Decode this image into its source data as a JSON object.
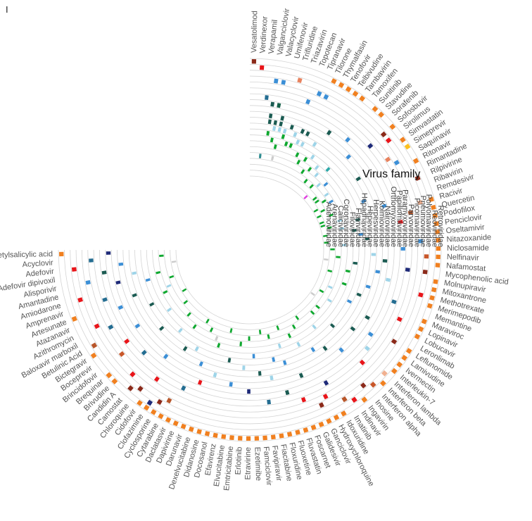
{
  "chart_data": {
    "type": "circular-heatmap",
    "panel_label": "I",
    "legend_title": "Virus family",
    "families": [
      "Retroviridae",
      "Reoviridae",
      "Polyomaviridae",
      "Pneumoviridae",
      "Picornaviridae",
      "Parvoviridae",
      "Paramyxoviridae",
      "Papillomaviridae",
      "Orthomyxoviridae",
      "Nairoviridae",
      "Kolmioviridae",
      "Herpesviridae",
      "Hepeviridae",
      "Hepadnaviridae",
      "Flaviviridae",
      "Filoviridae",
      "Coronaviridae",
      "Caliciviridae",
      "Arenaviridae",
      "Adenoviridae"
    ],
    "drugs": [
      "Vesatolimod",
      "Verdinexor",
      "Verapamil",
      "Valganciclovir",
      "Valacyclovir",
      "Umifenovir",
      "Trifluridine",
      "Triazavirin",
      "Topotecan",
      "Tipranavir",
      "Tilorone",
      "Thymalfasin",
      "Tenofovir",
      "Telbivudine",
      "Tarnbavirin",
      "Tamoxifen",
      "Sunitinib",
      "Stavudine",
      "Sorafenib",
      "Sofosbuvir",
      "Sirolimus",
      "Simvastatin",
      "Simeprevir",
      "Saquinavir",
      "Ritonavir",
      "Rimantadine",
      "Rilpivirine",
      "Ribavirin",
      "Remdesivir",
      "Racivir",
      "Quercetin",
      "Podofilox",
      "Penciclovir",
      "Oseltamivir",
      "Nitazoxanide",
      "Niclosamide",
      "Nelfinavir",
      "Nafamostat",
      "Mycophenolic acid",
      "Molnupiravir",
      "Mitoxantrone",
      "Methotrexate",
      "Merimepodib",
      "Memantine",
      "Maraviroc",
      "Lopinavir",
      "Lobucavir",
      "Leronlimab",
      "Leflunomide",
      "Lamivudine",
      "Ivermectin",
      "Interleukin-7",
      "Interferon lambda",
      "Interferon beta",
      "Interferon alpha",
      "Inosine",
      "Ingavirin",
      "Indinavir",
      "Imatinib",
      "Idoxuridine",
      "Hydroxychloroquine",
      "Ganciclovir",
      "Galidesivir",
      "Foscarnet",
      "Fluvastatin",
      "Fluoxetine",
      "Floxuridine",
      "Fiacitabine",
      "Favipiravir",
      "Famciclovir",
      "Ezetimibe",
      "Etravirine",
      "Erlotinib",
      "Emtricitabine",
      "Elvucitabine",
      "Efavirenz",
      "Docosanol",
      "Didanosine",
      "Dexelvucitabine",
      "Darunavir",
      "Dapivirine",
      "Daclatasvir",
      "Cytarabine",
      "Cyclosporine",
      "Clofazimine",
      "Cidofovir",
      "Chloroquine",
      "Camostat",
      "Candidin A",
      "Brivudine",
      "Brequinar",
      "Brincidofovir",
      "Boceprevir",
      "Bictegravir",
      "Betulinic Acid",
      "Baloxavir marboxil",
      "Azithromycin",
      "Atazanavir",
      "Artesunate",
      "Amprenavir",
      "Amiodarone",
      "Amantadine",
      "Alisporivir",
      "Adefovir dipivoxil",
      "Adefovir",
      "Acyclovir",
      "Acetylsalicylic acid"
    ],
    "cells": [
      [
        0,
        0,
        "#8b2a1a"
      ],
      [
        1,
        1,
        "#e8151a"
      ],
      [
        2,
        6,
        "#246d91"
      ],
      [
        2,
        16,
        "#2d8b8f"
      ],
      [
        3,
        3,
        "#3c8fd6"
      ],
      [
        3,
        7,
        "#1b5b52"
      ],
      [
        3,
        9,
        "#1b5b52"
      ],
      [
        3,
        10,
        "#1b5b52"
      ],
      [
        3,
        12,
        "#10a830"
      ],
      [
        4,
        3,
        "#3c8fd6"
      ],
      [
        4,
        7,
        "#16614a"
      ],
      [
        4,
        10,
        "#1b5b52"
      ],
      [
        4,
        11,
        "#9ed4e8"
      ],
      [
        4,
        13,
        "#10a830"
      ],
      [
        5,
        9,
        "#1b5b52"
      ],
      [
        5,
        10,
        "#1b5b52"
      ],
      [
        5,
        11,
        "#9ed4e8"
      ],
      [
        5,
        14,
        "#10a830"
      ],
      [
        5,
        16,
        "#cccccc"
      ],
      [
        6,
        2,
        "#e8825e"
      ],
      [
        6,
        11,
        "#9ed4e8"
      ],
      [
        6,
        12,
        "#10a830"
      ],
      [
        7,
        10,
        "#1b5b52"
      ],
      [
        7,
        13,
        "#10a830"
      ],
      [
        8,
        5,
        "#3c8fd6"
      ],
      [
        8,
        11,
        "#9ed4e8"
      ],
      [
        8,
        13,
        "#10a830"
      ],
      [
        9,
        3,
        "#3c8fd6"
      ],
      [
        9,
        10,
        "#1b5b52"
      ],
      [
        9,
        12,
        "#9ed4e8"
      ],
      [
        10,
        0,
        "#f08020"
      ],
      [
        10,
        3,
        "#3c8fd6"
      ],
      [
        10,
        10,
        "#1b5b52"
      ],
      [
        10,
        12,
        "#9ed4e8"
      ],
      [
        10,
        14,
        "#10a830"
      ],
      [
        11,
        0,
        "#f08020"
      ],
      [
        11,
        15,
        "#10a830"
      ],
      [
        12,
        0,
        "#f08020"
      ],
      [
        12,
        11,
        "#9ed4e8"
      ],
      [
        12,
        14,
        "#10a830"
      ],
      [
        13,
        0,
        "#f08020"
      ],
      [
        13,
        8,
        "#1b5b52"
      ],
      [
        13,
        13,
        "#9ed4e8"
      ],
      [
        13,
        16,
        "#10a830"
      ],
      [
        14,
        0,
        "#f08020"
      ],
      [
        14,
        15,
        "#10a830"
      ],
      [
        15,
        14,
        "#9ed4e8"
      ],
      [
        15,
        17,
        "#10a830"
      ],
      [
        16,
        0,
        "#f08020"
      ],
      [
        16,
        7,
        "#3c8fd6"
      ],
      [
        16,
        15,
        "#9ed4e8"
      ],
      [
        17,
        0,
        "#f08020"
      ],
      [
        17,
        13,
        "#2da8a8"
      ],
      [
        17,
        17,
        "#10a830"
      ],
      [
        18,
        9,
        "#3c8fd6"
      ],
      [
        18,
        16,
        "#9ed4e8"
      ],
      [
        18,
        19,
        "#e040e0"
      ],
      [
        19,
        0,
        "#f08020"
      ],
      [
        19,
        2,
        "#8b2a1a"
      ],
      [
        19,
        5,
        "#1e2a78"
      ],
      [
        19,
        15,
        "#3c8fd6"
      ],
      [
        20,
        2,
        "#e8151a"
      ],
      [
        20,
        18,
        "#10a830"
      ],
      [
        21,
        0,
        "#f08020"
      ],
      [
        21,
        16,
        "#9ed4e8"
      ],
      [
        21,
        18,
        "#10a830"
      ],
      [
        22,
        0,
        "#fbc020"
      ],
      [
        22,
        4,
        "#e8825e"
      ],
      [
        22,
        10,
        "#1b5b52"
      ],
      [
        22,
        17,
        "#10a830"
      ],
      [
        23,
        3,
        "#3c8fd6"
      ],
      [
        23,
        16,
        "#3c8fd6"
      ],
      [
        23,
        19,
        "#10a830"
      ],
      [
        24,
        0,
        "#f08020"
      ],
      [
        24,
        18,
        "#10a830"
      ],
      [
        25,
        19,
        "#10a830"
      ],
      [
        26,
        1,
        "#8b2a1a"
      ],
      [
        26,
        11,
        "#3c8fd6"
      ],
      [
        26,
        17,
        "#10a830"
      ],
      [
        27,
        19,
        "#10a830"
      ],
      [
        28,
        8,
        "#3c8fd6"
      ],
      [
        28,
        16,
        "#9ed4e8"
      ],
      [
        28,
        19,
        "#10a830"
      ],
      [
        29,
        0,
        "#f08020"
      ],
      [
        29,
        2,
        "#f0b090"
      ],
      [
        29,
        13,
        "#1b5b52"
      ],
      [
        29,
        18,
        "#10a830"
      ],
      [
        30,
        0,
        "#f08020"
      ],
      [
        30,
        4,
        "#b8562a"
      ],
      [
        30,
        16,
        "#9ed4e8"
      ],
      [
        30,
        18,
        "#cccccc"
      ],
      [
        31,
        0,
        "#f08020"
      ],
      [
        31,
        6,
        "#e8151a"
      ],
      [
        31,
        14,
        "#1b5b52"
      ],
      [
        31,
        19,
        "#10a830"
      ],
      [
        32,
        0,
        "#f08020"
      ],
      [
        32,
        13,
        "#3c8fd6"
      ],
      [
        33,
        0,
        "#f08020"
      ],
      [
        33,
        12,
        "#1b5b52"
      ],
      [
        33,
        19,
        "#10a830"
      ],
      [
        34,
        0,
        "#f08020"
      ],
      [
        34,
        3,
        "#3c8fd6"
      ],
      [
        34,
        16,
        "#9ed4e8"
      ],
      [
        35,
        0,
        "#f08020"
      ],
      [
        35,
        6,
        "#3c8fd6"
      ],
      [
        35,
        18,
        "#10a830"
      ],
      [
        36,
        0,
        "#f08020"
      ],
      [
        36,
        2,
        "#c8572a"
      ],
      [
        36,
        11,
        "#9ed4e8"
      ],
      [
        37,
        0,
        "#f08020"
      ],
      [
        37,
        9,
        "#1b5b52"
      ],
      [
        37,
        17,
        "#10a830"
      ],
      [
        38,
        2,
        "#8b2a1a"
      ],
      [
        38,
        5,
        "#1e2a78"
      ],
      [
        38,
        14,
        "#1b5b52"
      ],
      [
        38,
        19,
        "#cccccc"
      ],
      [
        39,
        0,
        "#f08020"
      ],
      [
        39,
        10,
        "#3c8fd6"
      ],
      [
        40,
        0,
        "#f08020"
      ],
      [
        40,
        8,
        "#9ed4e8"
      ],
      [
        40,
        15,
        "#10a830"
      ],
      [
        41,
        0,
        "#f08020"
      ],
      [
        41,
        2,
        "#e8151a"
      ],
      [
        41,
        18,
        "#10a830"
      ],
      [
        42,
        0,
        "#f08020"
      ],
      [
        42,
        11,
        "#3c8fd6"
      ],
      [
        43,
        6,
        "#246d91"
      ],
      [
        43,
        15,
        "#10a830"
      ],
      [
        44,
        0,
        "#f08020"
      ],
      [
        44,
        12,
        "#1b5b52"
      ],
      [
        45,
        0,
        "#f08020"
      ],
      [
        45,
        4,
        "#e8151a"
      ],
      [
        45,
        17,
        "#9ed4e8"
      ],
      [
        46,
        0,
        "#f08020"
      ],
      [
        46,
        13,
        "#3c8fd6"
      ],
      [
        47,
        9,
        "#1b5b52"
      ],
      [
        47,
        18,
        "#10a830"
      ],
      [
        48,
        0,
        "#f08020"
      ],
      [
        48,
        3,
        "#8b2a1a"
      ],
      [
        48,
        16,
        "#9ed4e8"
      ],
      [
        49,
        0,
        "#f08020"
      ],
      [
        49,
        7,
        "#3c8fd6"
      ],
      [
        49,
        19,
        "#cccccc"
      ],
      [
        50,
        0,
        "#f08020"
      ],
      [
        50,
        10,
        "#1b5b52"
      ],
      [
        51,
        0,
        "#f08020"
      ],
      [
        51,
        6,
        "#9ed4e8"
      ],
      [
        51,
        17,
        "#10a830"
      ],
      [
        52,
        1,
        "#f0b090"
      ],
      [
        52,
        13,
        "#1b5b52"
      ],
      [
        53,
        0,
        "#f08020"
      ],
      [
        53,
        5,
        "#e8151a"
      ],
      [
        53,
        17,
        "#10a830"
      ],
      [
        54,
        1,
        "#c8572a"
      ],
      [
        54,
        9,
        "#3c8fd6"
      ],
      [
        55,
        2,
        "#8b2a1a"
      ],
      [
        55,
        15,
        "#9ed4e8"
      ],
      [
        56,
        0,
        "#f08020"
      ],
      [
        56,
        11,
        "#1b5b52"
      ],
      [
        57,
        1,
        "#e8151a"
      ],
      [
        57,
        18,
        "#10a830"
      ],
      [
        58,
        2,
        "#b8562a"
      ],
      [
        58,
        12,
        "#3c8fd6"
      ],
      [
        59,
        0,
        "#f08020"
      ],
      [
        59,
        6,
        "#1e2a78"
      ],
      [
        59,
        17,
        "#10a830"
      ],
      [
        60,
        0,
        "#f08020"
      ],
      [
        60,
        4,
        "#e8151a"
      ],
      [
        60,
        14,
        "#9ed4e8"
      ],
      [
        61,
        0,
        "#f08020"
      ],
      [
        61,
        3,
        "#8b2a1a"
      ],
      [
        61,
        16,
        "#10a830"
      ],
      [
        62,
        0,
        "#f08020"
      ],
      [
        62,
        9,
        "#1b5b52"
      ],
      [
        63,
        0,
        "#f08020"
      ],
      [
        63,
        5,
        "#e8151a"
      ],
      [
        63,
        18,
        "#10a830"
      ],
      [
        64,
        0,
        "#f08020"
      ],
      [
        64,
        12,
        "#3c8fd6"
      ],
      [
        64,
        15,
        "#9ed4e8"
      ],
      [
        65,
        0,
        "#f08020"
      ],
      [
        65,
        7,
        "#1b5b52"
      ],
      [
        66,
        0,
        "#f08020"
      ],
      [
        66,
        13,
        "#3c8fd6"
      ],
      [
        66,
        17,
        "#10a830"
      ],
      [
        67,
        0,
        "#f08020"
      ],
      [
        67,
        10,
        "#9ed4e8"
      ],
      [
        68,
        0,
        "#f08020"
      ],
      [
        68,
        6,
        "#246d91"
      ],
      [
        68,
        18,
        "#10a830"
      ],
      [
        69,
        0,
        "#f08020"
      ],
      [
        69,
        11,
        "#1b5b52"
      ],
      [
        70,
        0,
        "#f08020"
      ],
      [
        70,
        14,
        "#3c8fd6"
      ],
      [
        71,
        0,
        "#f08020"
      ],
      [
        71,
        8,
        "#1e2a78"
      ],
      [
        71,
        17,
        "#10a830"
      ],
      [
        72,
        0,
        "#f08020"
      ],
      [
        72,
        12,
        "#9ed4e8"
      ],
      [
        73,
        0,
        "#f08020"
      ],
      [
        73,
        16,
        "#10a830"
      ],
      [
        74,
        0,
        "#f08020"
      ],
      [
        74,
        9,
        "#3c8fd6"
      ],
      [
        75,
        0,
        "#f08020"
      ],
      [
        75,
        13,
        "#1b5b52"
      ],
      [
        76,
        0,
        "#f08020"
      ],
      [
        76,
        18,
        "#10a830"
      ],
      [
        77,
        0,
        "#f08020"
      ],
      [
        77,
        10,
        "#9ed4e8"
      ],
      [
        78,
        0,
        "#f08020"
      ],
      [
        78,
        15,
        "#10a830"
      ],
      [
        79,
        0,
        "#f08020"
      ],
      [
        79,
        8,
        "#e8151a"
      ],
      [
        79,
        16,
        "#cccccc"
      ],
      [
        80,
        0,
        "#f08020"
      ],
      [
        80,
        11,
        "#3c8fd6"
      ],
      [
        81,
        0,
        "#f08020"
      ],
      [
        81,
        6,
        "#246d91"
      ],
      [
        81,
        17,
        "#10a830"
      ],
      [
        82,
        0,
        "#f08020"
      ],
      [
        82,
        3,
        "#b8562a"
      ],
      [
        82,
        13,
        "#9ed4e8"
      ],
      [
        83,
        0,
        "#f08020"
      ],
      [
        83,
        2,
        "#8b2a1a"
      ],
      [
        83,
        18,
        "#10a830"
      ],
      [
        84,
        0,
        "#f08020"
      ],
      [
        84,
        1,
        "#1e2a78"
      ],
      [
        84,
        12,
        "#1b5b52"
      ],
      [
        85,
        0,
        "#f08020"
      ],
      [
        85,
        5,
        "#e8151a"
      ],
      [
        85,
        16,
        "#10a830"
      ],
      [
        86,
        2,
        "#8b2a1a"
      ],
      [
        86,
        9,
        "#3c8fd6"
      ],
      [
        87,
        1,
        "#8b2a1a"
      ],
      [
        87,
        14,
        "#9ed4e8"
      ],
      [
        88,
        3,
        "#e8151a"
      ],
      [
        88,
        17,
        "#10a830"
      ],
      [
        89,
        0,
        "#f08020"
      ],
      [
        89,
        7,
        "#246d91"
      ],
      [
        90,
        0,
        "#f08020"
      ],
      [
        90,
        12,
        "#1b5b52"
      ],
      [
        91,
        4,
        "#c8572a"
      ],
      [
        91,
        18,
        "#10a830"
      ],
      [
        92,
        6,
        "#e8151a"
      ],
      [
        92,
        15,
        "#9ed4e8"
      ],
      [
        93,
        0,
        "#f08020"
      ],
      [
        93,
        9,
        "#3c8fd6"
      ],
      [
        94,
        1,
        "#b8562a"
      ],
      [
        94,
        19,
        "#10a830"
      ],
      [
        95,
        5,
        "#246d91"
      ],
      [
        95,
        13,
        "#1b5b52"
      ],
      [
        96,
        3,
        "#e8151a"
      ],
      [
        96,
        16,
        "#10a830"
      ],
      [
        97,
        8,
        "#3c8fd6"
      ],
      [
        97,
        17,
        "#9ed4e8"
      ],
      [
        98,
        0,
        "#f08020"
      ],
      [
        98,
        11,
        "#1b5b52"
      ],
      [
        99,
        6,
        "#246d91"
      ],
      [
        99,
        18,
        "#10a830"
      ],
      [
        100,
        2,
        "#e8151a"
      ],
      [
        100,
        14,
        "#3c8fd6"
      ],
      [
        101,
        9,
        "#1e2a78"
      ],
      [
        101,
        16,
        "#10a830"
      ],
      [
        102,
        4,
        "#3c8fd6"
      ],
      [
        102,
        12,
        "#9ed4e8"
      ],
      [
        103,
        7,
        "#1b5b52"
      ],
      [
        103,
        19,
        "#cccccc"
      ],
      [
        104,
        2,
        "#e8151a"
      ],
      [
        104,
        10,
        "#3c8fd6"
      ],
      [
        105,
        5,
        "#246d91"
      ],
      [
        105,
        17,
        "#10a830"
      ],
      [
        106,
        0,
        "#f08020"
      ],
      [
        106,
        8,
        "#1e2a78"
      ]
    ]
  }
}
